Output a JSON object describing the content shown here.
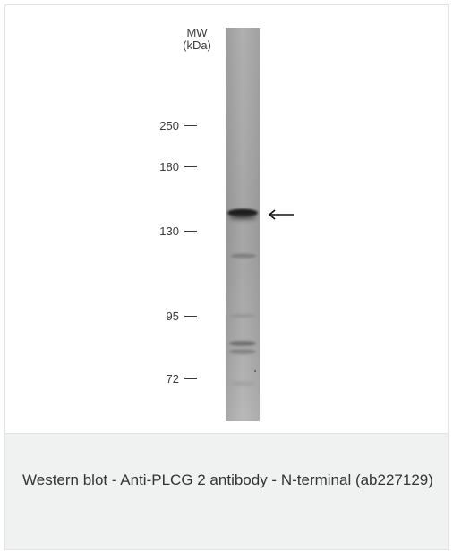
{
  "figure": {
    "mw_label_line1": "MW",
    "mw_label_line2": "(kDa)",
    "markers": [
      {
        "label": "250"
      },
      {
        "label": "180"
      },
      {
        "label": "130"
      },
      {
        "label": "95"
      },
      {
        "label": "72"
      }
    ],
    "lane_color": "#a8a8a8",
    "arrow_icon": "left-arrow-icon"
  },
  "caption": {
    "text": "Western blot - Anti-PLCG 2 antibody - N-terminal (ab227129)"
  }
}
